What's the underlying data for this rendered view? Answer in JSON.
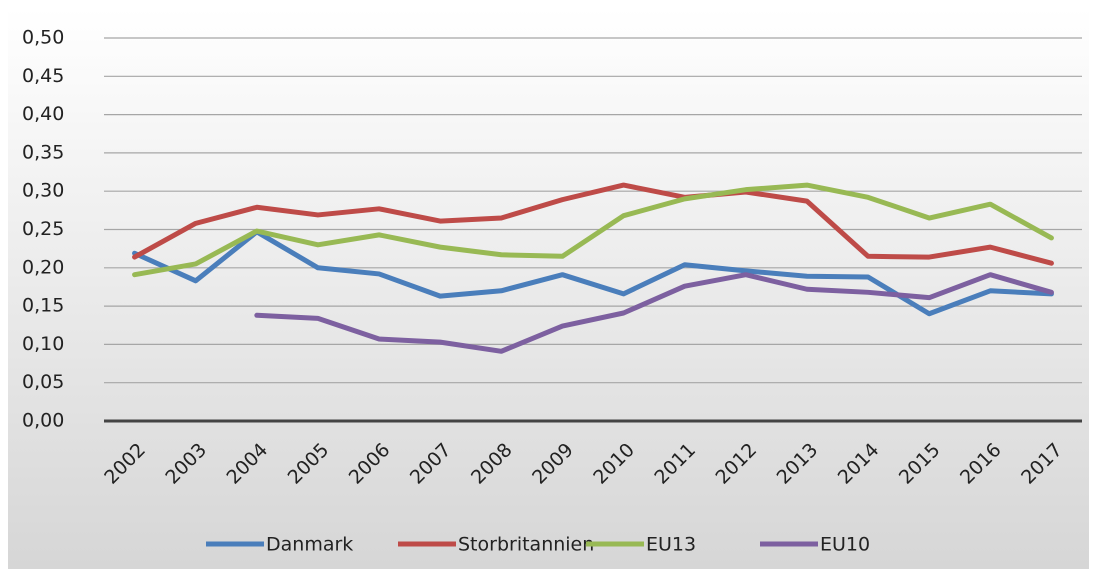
{
  "chart_data": {
    "type": "line",
    "categories": [
      "2002",
      "2003",
      "2004",
      "2005",
      "2006",
      "2007",
      "2008",
      "2009",
      "2010",
      "2011",
      "2012",
      "2013",
      "2014",
      "2015",
      "2016",
      "2017"
    ],
    "series": [
      {
        "name": "Danmark",
        "color": "#4a7ebb",
        "values": [
          0.219,
          0.183,
          0.247,
          0.2,
          0.192,
          0.163,
          0.17,
          0.191,
          0.166,
          0.204,
          0.196,
          0.189,
          0.188,
          0.14,
          0.17,
          0.166
        ]
      },
      {
        "name": "Storbritannien",
        "color": "#be4b48",
        "values": [
          0.214,
          0.258,
          0.279,
          0.269,
          0.277,
          0.261,
          0.265,
          0.289,
          0.308,
          0.292,
          0.299,
          0.287,
          0.215,
          0.214,
          0.227,
          0.206
        ]
      },
      {
        "name": "EU13",
        "color": "#98b954",
        "values": [
          0.191,
          0.205,
          0.248,
          0.23,
          0.243,
          0.227,
          0.217,
          0.215,
          0.268,
          0.29,
          0.302,
          0.308,
          0.292,
          0.265,
          0.283,
          0.239
        ]
      },
      {
        "name": "EU10",
        "color": "#7d60a0",
        "values": [
          null,
          null,
          0.138,
          0.134,
          0.107,
          0.103,
          0.091,
          0.124,
          0.141,
          0.176,
          0.191,
          0.172,
          0.168,
          0.161,
          0.191,
          0.168
        ]
      }
    ],
    "ylim": [
      0,
      0.5
    ],
    "yticks": [
      {
        "value": 0,
        "label": "0,00"
      },
      {
        "value": 0.05,
        "label": "0,05"
      },
      {
        "value": 0.1,
        "label": "0,10"
      },
      {
        "value": 0.15,
        "label": "0,15"
      },
      {
        "value": 0.2,
        "label": "0,20"
      },
      {
        "value": 0.25,
        "label": "0,25"
      },
      {
        "value": 0.3,
        "label": "0,30"
      },
      {
        "value": 0.35,
        "label": "0,35"
      },
      {
        "value": 0.4,
        "label": "0,40"
      },
      {
        "value": 0.45,
        "label": "0,45"
      },
      {
        "value": 0.5,
        "label": "0,50"
      }
    ],
    "grid": true,
    "legend": "bottom"
  }
}
